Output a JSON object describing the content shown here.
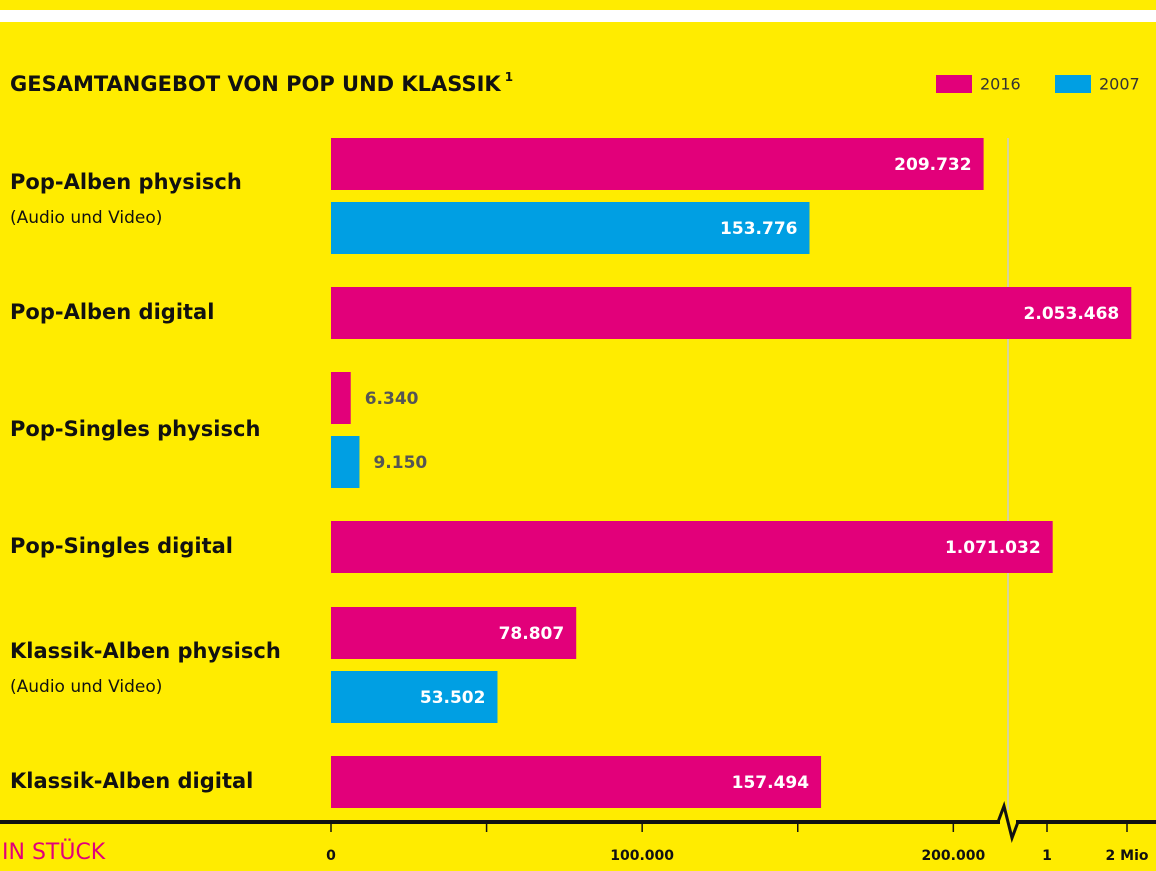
{
  "chart_data": {
    "type": "bar",
    "orientation": "horizontal",
    "title": "GESAMTANGEBOT VON POP UND KLASSIK",
    "title_note": "1",
    "x_axis_label": "IN STÜCK",
    "categories": [
      "Pop-Alben physisch",
      "Pop-Alben digital",
      "Pop-Singles physisch",
      "Pop-Singles digital",
      "Klassik-Alben physisch",
      "Klassik-Alben digital"
    ],
    "category_notes": [
      "(Audio und Video)",
      null,
      null,
      null,
      "(Audio und Video)",
      null
    ],
    "series": [
      {
        "name": "2016",
        "color": "#e2007a",
        "values": [
          209732,
          2053468,
          6340,
          1071032,
          78807,
          157494
        ],
        "value_labels": [
          "209.732",
          "2.053.468",
          "6.340",
          "1.071.032",
          "78.807",
          "157.494"
        ]
      },
      {
        "name": "2007",
        "color": "#009fe3",
        "values": [
          153776,
          null,
          9150,
          null,
          53502,
          null
        ],
        "value_labels": [
          "153.776",
          null,
          "9.150",
          null,
          "53.502",
          null
        ]
      }
    ],
    "x_segments": [
      [
        0,
        215000
      ],
      [
        600000,
        2100000
      ]
    ],
    "xticks": [
      0,
      {
        "value": 100000,
        "label": "100.000"
      },
      {
        "value": 200000,
        "label": "200.000"
      },
      {
        "value": 1000000,
        "label": "1"
      },
      {
        "value": 2000000,
        "label": "2 Mio"
      }
    ],
    "minor_xticks": [
      50000,
      150000
    ],
    "legend": "top-right"
  }
}
